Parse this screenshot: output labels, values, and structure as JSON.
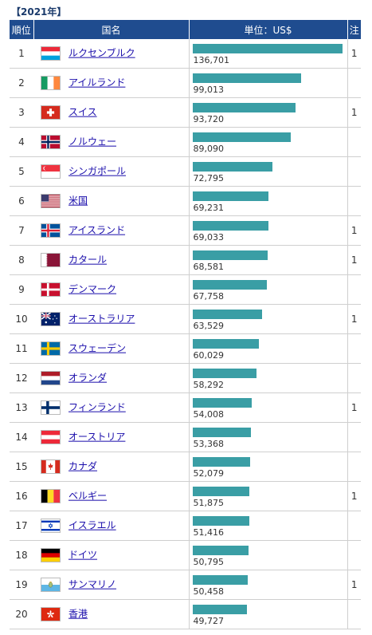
{
  "title": "【2021年】",
  "headers": {
    "rank": "順位",
    "country": "国名",
    "unit": "単位：US$",
    "note": "注"
  },
  "colors": {
    "header_bg": "#1f4c8f",
    "bar": "#3a9ea5",
    "link": "#1a0dab",
    "note": "#c0392b"
  },
  "max_value": 136701,
  "rows": [
    {
      "rank": "1",
      "country": "ルクセンブルク",
      "flag": "luxembourg",
      "value_text": "136,701",
      "value": 136701,
      "note": "1"
    },
    {
      "rank": "2",
      "country": "アイルランド",
      "flag": "ireland",
      "value_text": "99,013",
      "value": 99013,
      "note": ""
    },
    {
      "rank": "3",
      "country": "スイス",
      "flag": "switzerland",
      "value_text": "93,720",
      "value": 93720,
      "note": "1"
    },
    {
      "rank": "4",
      "country": "ノルウェー",
      "flag": "norway",
      "value_text": "89,090",
      "value": 89090,
      "note": ""
    },
    {
      "rank": "5",
      "country": "シンガポール",
      "flag": "singapore",
      "value_text": "72,795",
      "value": 72795,
      "note": ""
    },
    {
      "rank": "6",
      "country": "米国",
      "flag": "usa",
      "value_text": "69,231",
      "value": 69231,
      "note": ""
    },
    {
      "rank": "7",
      "country": "アイスランド",
      "flag": "iceland",
      "value_text": "69,033",
      "value": 69033,
      "note": "1"
    },
    {
      "rank": "8",
      "country": "カタール",
      "flag": "qatar",
      "value_text": "68,581",
      "value": 68581,
      "note": "1"
    },
    {
      "rank": "9",
      "country": "デンマーク",
      "flag": "denmark",
      "value_text": "67,758",
      "value": 67758,
      "note": ""
    },
    {
      "rank": "10",
      "country": "オーストラリア",
      "flag": "australia",
      "value_text": "63,529",
      "value": 63529,
      "note": "1"
    },
    {
      "rank": "11",
      "country": "スウェーデン",
      "flag": "sweden",
      "value_text": "60,029",
      "value": 60029,
      "note": ""
    },
    {
      "rank": "12",
      "country": "オランダ",
      "flag": "netherlands",
      "value_text": "58,292",
      "value": 58292,
      "note": ""
    },
    {
      "rank": "13",
      "country": "フィンランド",
      "flag": "finland",
      "value_text": "54,008",
      "value": 54008,
      "note": "1"
    },
    {
      "rank": "14",
      "country": "オーストリア",
      "flag": "austria",
      "value_text": "53,368",
      "value": 53368,
      "note": ""
    },
    {
      "rank": "15",
      "country": "カナダ",
      "flag": "canada",
      "value_text": "52,079",
      "value": 52079,
      "note": ""
    },
    {
      "rank": "16",
      "country": "ベルギー",
      "flag": "belgium",
      "value_text": "51,875",
      "value": 51875,
      "note": "1"
    },
    {
      "rank": "17",
      "country": "イスラエル",
      "flag": "israel",
      "value_text": "51,416",
      "value": 51416,
      "note": ""
    },
    {
      "rank": "18",
      "country": "ドイツ",
      "flag": "germany",
      "value_text": "50,795",
      "value": 50795,
      "note": ""
    },
    {
      "rank": "19",
      "country": "サンマリノ",
      "flag": "san-marino",
      "value_text": "50,458",
      "value": 50458,
      "note": "1"
    },
    {
      "rank": "20",
      "country": "香港",
      "flag": "hong-kong",
      "value_text": "49,727",
      "value": 49727,
      "note": ""
    }
  ]
}
